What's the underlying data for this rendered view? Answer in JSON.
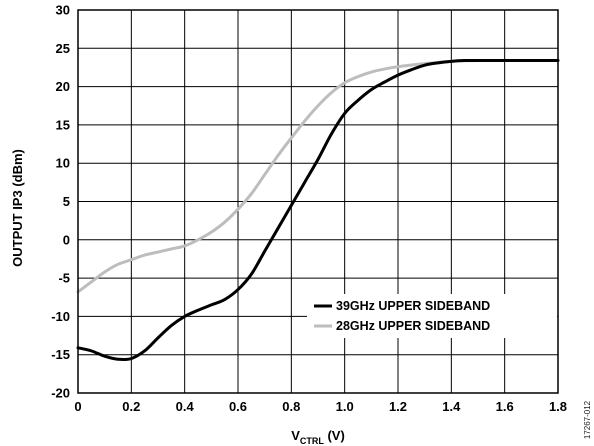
{
  "chart_data": {
    "type": "line",
    "xlabel": "V",
    "xlabel_sub": "CTRL",
    "xlabel_unit": " (V)",
    "ylabel": "OUTPUT IP3 (dBm)",
    "xlim": [
      0,
      1.8
    ],
    "ylim": [
      -20,
      30
    ],
    "x_ticks": [
      "0",
      "0.2",
      "0.4",
      "0.6",
      "0.8",
      "1.0",
      "1.2",
      "1.4",
      "1.6",
      "1.8"
    ],
    "y_ticks": [
      "30",
      "25",
      "20",
      "15",
      "10",
      "5",
      "0",
      "-5",
      "-10",
      "-15",
      "-20"
    ],
    "grid": true,
    "legend_position": "bottom-right",
    "figure_id": "17267-012",
    "series": [
      {
        "name": "39GHz UPPER SIDEBAND",
        "color": "#000000",
        "x": [
          0,
          0.05,
          0.1,
          0.15,
          0.2,
          0.25,
          0.3,
          0.35,
          0.4,
          0.45,
          0.5,
          0.55,
          0.6,
          0.65,
          0.7,
          0.75,
          0.8,
          0.85,
          0.9,
          0.95,
          1.0,
          1.05,
          1.1,
          1.15,
          1.2,
          1.25,
          1.3,
          1.35,
          1.4,
          1.45,
          1.5,
          1.6,
          1.7,
          1.8
        ],
        "y": [
          -14.1,
          -14.5,
          -15.2,
          -15.6,
          -15.5,
          -14.5,
          -12.8,
          -11.2,
          -10.0,
          -9.2,
          -8.5,
          -7.8,
          -6.5,
          -4.5,
          -1.5,
          1.5,
          4.5,
          7.5,
          10.5,
          13.8,
          16.5,
          18.2,
          19.6,
          20.6,
          21.5,
          22.2,
          22.8,
          23.1,
          23.3,
          23.4,
          23.4,
          23.4,
          23.4,
          23.4
        ]
      },
      {
        "name": "28GHz UPPER SIDEBAND",
        "color": "#bdbdbd",
        "x": [
          0,
          0.05,
          0.1,
          0.15,
          0.2,
          0.25,
          0.3,
          0.35,
          0.4,
          0.45,
          0.5,
          0.55,
          0.6,
          0.65,
          0.7,
          0.75,
          0.8,
          0.85,
          0.9,
          0.95,
          1.0,
          1.05,
          1.1,
          1.15,
          1.2,
          1.3,
          1.4,
          1.5,
          1.6,
          1.7,
          1.8
        ],
        "y": [
          -6.8,
          -5.5,
          -4.2,
          -3.2,
          -2.6,
          -2.0,
          -1.6,
          -1.2,
          -0.8,
          0.0,
          1.0,
          2.3,
          4.0,
          6.0,
          8.5,
          11.0,
          13.3,
          15.5,
          17.5,
          19.2,
          20.5,
          21.3,
          21.9,
          22.3,
          22.6,
          23.0,
          23.3,
          23.4,
          23.4,
          23.4,
          23.4
        ]
      }
    ]
  }
}
